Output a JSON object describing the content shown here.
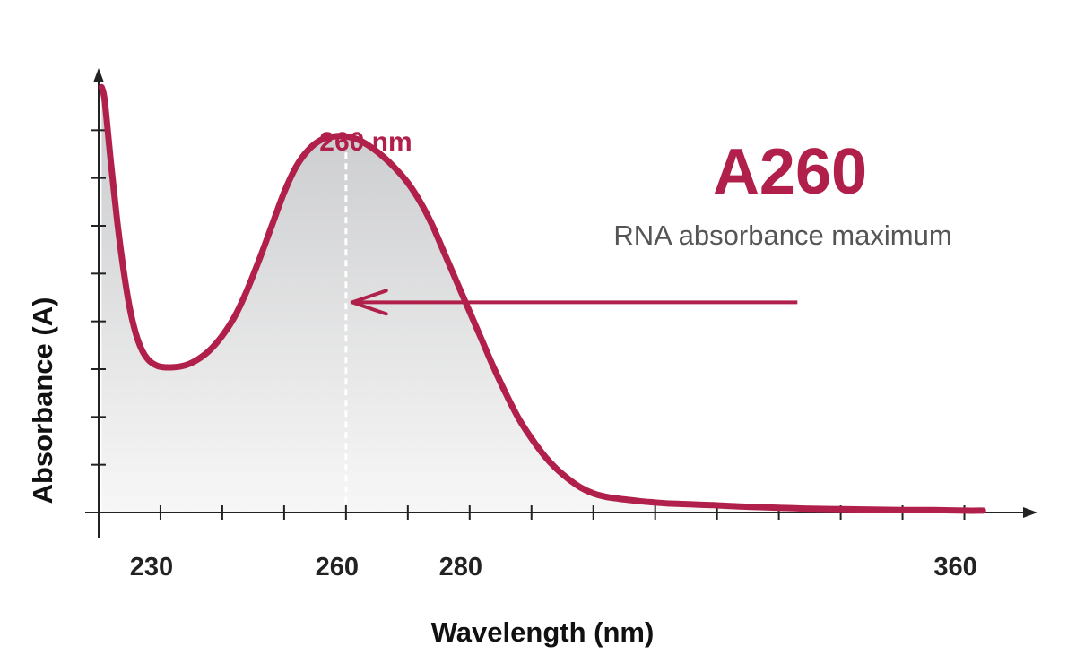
{
  "colors": {
    "curve": "#b0204a",
    "axis": "#222222",
    "fill_top": "#c8c9cb",
    "fill_bottom": "#f7f7f7",
    "peak_line": "#ffffff"
  },
  "chart_data": {
    "type": "area",
    "title": "A260",
    "subtitle": "RNA absorbance maximum",
    "xlabel": "Wavelength (nm)",
    "ylabel": "Absorbance (A)",
    "xlim": [
      220,
      365
    ],
    "ylim": [
      0,
      9
    ],
    "x_tick_step": 10,
    "y_tick_step": 1,
    "x_tick_labels": [
      {
        "value": 230,
        "text": "230"
      },
      {
        "value": 260,
        "text": "260"
      },
      {
        "value": 280,
        "text": "280"
      },
      {
        "value": 360,
        "text": "360"
      }
    ],
    "peak": {
      "x": 260,
      "label": "260 nm"
    },
    "arrow": {
      "from_x": 333,
      "to_x": 261,
      "y": 4.4
    },
    "series": [
      {
        "x": [
          220.5,
          221,
          222,
          223,
          224,
          225,
          226,
          227,
          228,
          229,
          230,
          232,
          234,
          236,
          238,
          240,
          242,
          244,
          246,
          248,
          250,
          252,
          254,
          256,
          258,
          260,
          262,
          264,
          266,
          268,
          270,
          272,
          274,
          276,
          278,
          280,
          282,
          284,
          286,
          288,
          290,
          292,
          294,
          296,
          298,
          300,
          302,
          304,
          306,
          308,
          310,
          312,
          314,
          316,
          318,
          320,
          325,
          330,
          335,
          340,
          345,
          350,
          355,
          360,
          363
        ],
        "values": [
          8.9,
          8.6,
          7.3,
          6.1,
          5.1,
          4.3,
          3.75,
          3.4,
          3.2,
          3.1,
          3.05,
          3.04,
          3.08,
          3.2,
          3.4,
          3.7,
          4.1,
          4.65,
          5.3,
          6.0,
          6.7,
          7.25,
          7.6,
          7.8,
          7.87,
          7.87,
          7.8,
          7.65,
          7.45,
          7.2,
          6.9,
          6.5,
          6.0,
          5.4,
          4.8,
          4.2,
          3.6,
          3.0,
          2.45,
          1.95,
          1.55,
          1.2,
          0.92,
          0.7,
          0.52,
          0.4,
          0.33,
          0.29,
          0.26,
          0.23,
          0.21,
          0.19,
          0.18,
          0.17,
          0.16,
          0.15,
          0.12,
          0.1,
          0.08,
          0.07,
          0.06,
          0.05,
          0.05,
          0.04,
          0.04
        ]
      }
    ]
  }
}
